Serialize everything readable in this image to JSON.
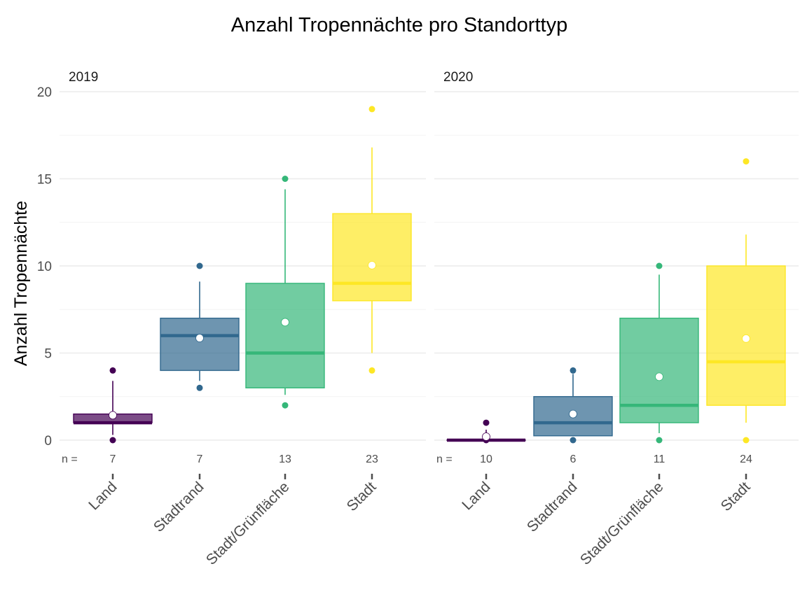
{
  "chart_data": {
    "type": "boxplot",
    "title": "Anzahl Tropennächte pro Standorttyp",
    "xlabel": "",
    "ylabel": "Anzahl Tropennächte",
    "ylim": [
      0,
      20
    ],
    "yticks": [
      0,
      5,
      10,
      15,
      20
    ],
    "grid": true,
    "legend": "none",
    "n_prefix": "n =",
    "categories": [
      "Land",
      "Stadtrand",
      "Stadt/Grünfläche",
      "Stadt"
    ],
    "colors": {
      "Land": "#440154",
      "Stadtrand": "#31688e",
      "Stadt/Grünfläche": "#35b779",
      "Stadt": "#fde725"
    },
    "panels": [
      {
        "label": "2019",
        "boxes": [
          {
            "category": "Land",
            "n": 7,
            "q1": 1,
            "median": 1,
            "q3": 1.5,
            "whisker_low": 0.3,
            "whisker_high": 3.4,
            "min": 0,
            "max": 4,
            "mean": 1.43
          },
          {
            "category": "Stadtrand",
            "n": 7,
            "q1": 4,
            "median": 6,
            "q3": 7,
            "whisker_low": 3.4,
            "whisker_high": 9.1,
            "min": 3,
            "max": 10,
            "mean": 5.86
          },
          {
            "category": "Stadt/Grünfläche",
            "n": 13,
            "q1": 3,
            "median": 5,
            "q3": 9,
            "whisker_low": 2.6,
            "whisker_high": 14.4,
            "min": 2,
            "max": 15,
            "mean": 6.77
          },
          {
            "category": "Stadt",
            "n": 23,
            "q1": 8,
            "median": 9,
            "q3": 13,
            "whisker_low": 5,
            "whisker_high": 16.8,
            "min": 4,
            "max": 19,
            "mean": 10.04
          }
        ]
      },
      {
        "label": "2020",
        "boxes": [
          {
            "category": "Land",
            "n": 10,
            "q1": 0,
            "median": 0,
            "q3": 0,
            "whisker_low": 0,
            "whisker_high": 0.6,
            "min": 0,
            "max": 1,
            "mean": 0.2
          },
          {
            "category": "Stadtrand",
            "n": 6,
            "q1": 0.25,
            "median": 1,
            "q3": 2.5,
            "whisker_low": 0.25,
            "whisker_high": 3.8,
            "min": 0,
            "max": 4,
            "mean": 1.5
          },
          {
            "category": "Stadt/Grünfläche",
            "n": 11,
            "q1": 1,
            "median": 2,
            "q3": 7,
            "whisker_low": 0.4,
            "whisker_high": 9.5,
            "min": 0,
            "max": 10,
            "mean": 3.64
          },
          {
            "category": "Stadt",
            "n": 24,
            "q1": 2,
            "median": 4.5,
            "q3": 10,
            "whisker_low": 1,
            "whisker_high": 11.8,
            "min": 0,
            "max": 16,
            "mean": 5.83
          }
        ]
      }
    ]
  }
}
